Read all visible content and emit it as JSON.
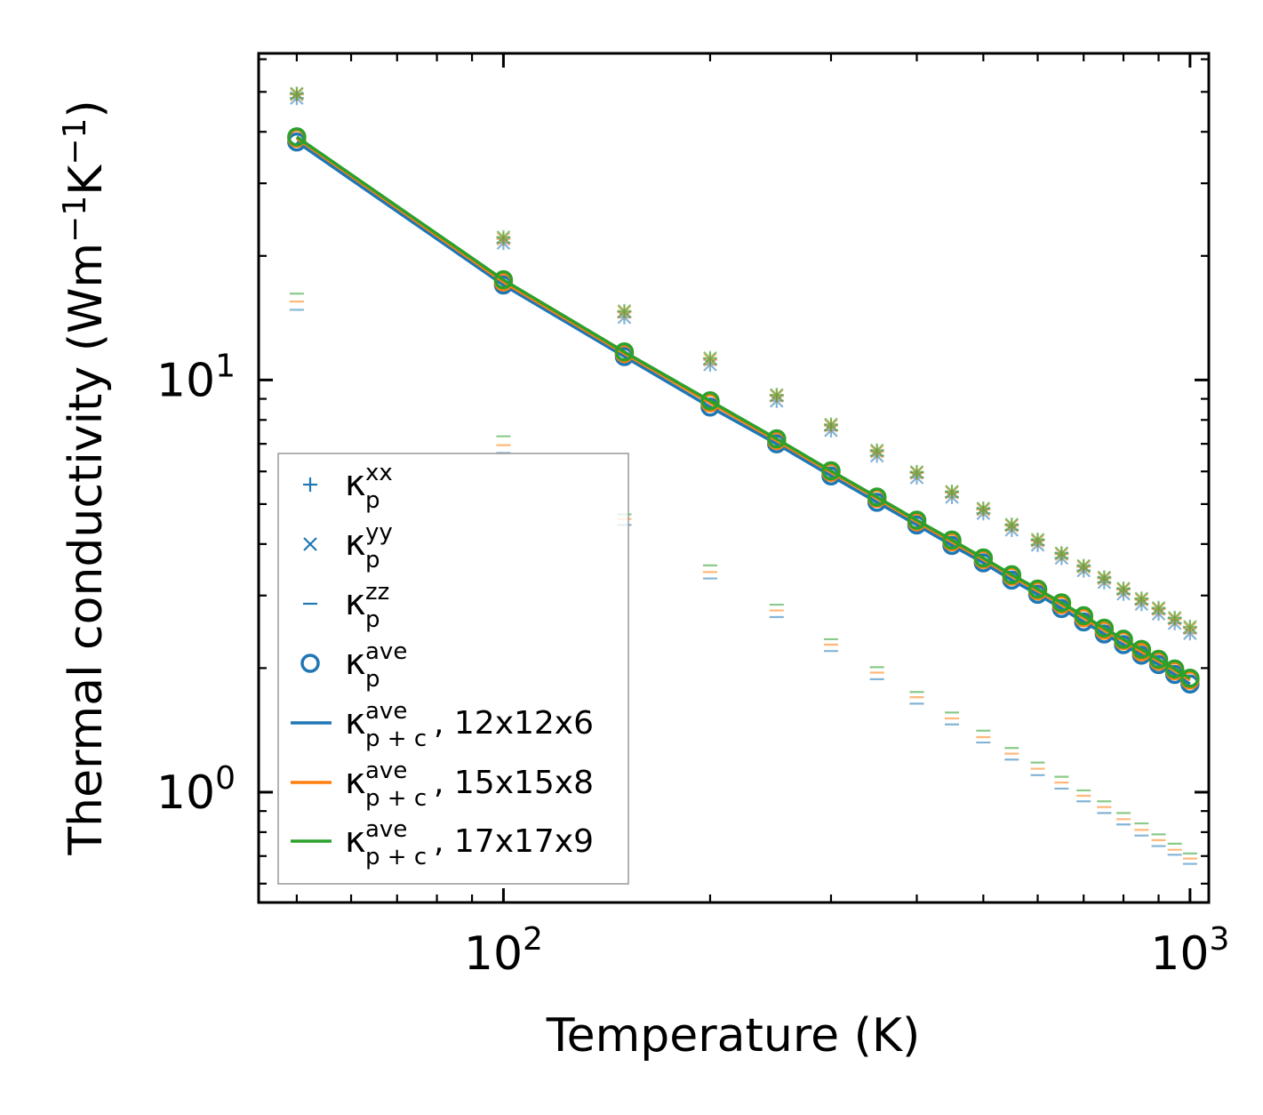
{
  "chart_data": {
    "type": "scatter",
    "title": "",
    "xlabel": "Temperature (K)",
    "ylabel": "Thermal conductivity (Wm",
    "ylabel_sup1": "−1",
    "ylabel_mid": "K",
    "ylabel_sup2": "−1",
    "ylabel_end": ")",
    "xscale": "log",
    "yscale": "log",
    "xlim": [
      44,
      1065
    ],
    "ylim": [
      0.54,
      62
    ],
    "x_major_ticks": [
      {
        "value": 100,
        "base": "10",
        "exp": "2"
      },
      {
        "value": 1000,
        "base": "10",
        "exp": "3"
      }
    ],
    "y_major_ticks": [
      {
        "value": 1,
        "base": "10",
        "exp": "0"
      },
      {
        "value": 10,
        "base": "10",
        "exp": "1"
      }
    ],
    "x": [
      50,
      100,
      150,
      200,
      250,
      300,
      350,
      400,
      450,
      500,
      550,
      600,
      650,
      700,
      750,
      800,
      850,
      900,
      950,
      1000
    ],
    "series": [
      {
        "name": "12x12x6",
        "color": "#1f77b4",
        "kxx": [
          48.3,
          21.5,
          14.2,
          10.9,
          8.9,
          7.55,
          6.55,
          5.8,
          5.2,
          4.75,
          4.33,
          3.98,
          3.7,
          3.45,
          3.23,
          3.03,
          2.86,
          2.71,
          2.57,
          2.43
        ],
        "kyy": [
          48.3,
          21.5,
          14.2,
          10.9,
          8.9,
          7.55,
          6.55,
          5.8,
          5.2,
          4.75,
          4.33,
          3.98,
          3.7,
          3.45,
          3.23,
          3.03,
          2.86,
          2.71,
          2.57,
          2.43
        ],
        "kzz": [
          14.8,
          6.65,
          4.45,
          3.3,
          2.66,
          2.2,
          1.88,
          1.64,
          1.46,
          1.32,
          1.2,
          1.1,
          1.02,
          0.95,
          0.89,
          0.835,
          0.785,
          0.74,
          0.705,
          0.67
        ],
        "kave_p": [
          37.8,
          17.0,
          11.4,
          8.6,
          7.0,
          5.85,
          5.05,
          4.45,
          3.97,
          3.6,
          3.27,
          3.02,
          2.79,
          2.59,
          2.42,
          2.28,
          2.15,
          2.04,
          1.93,
          1.83
        ],
        "kave_pc": [
          37.8,
          17.0,
          11.4,
          8.6,
          7.0,
          5.85,
          5.05,
          4.45,
          3.97,
          3.6,
          3.27,
          3.02,
          2.79,
          2.59,
          2.42,
          2.28,
          2.15,
          2.04,
          1.93,
          1.83
        ]
      },
      {
        "name": "15x15x8",
        "color": "#ff7f0e",
        "kxx": [
          49.3,
          22.0,
          14.6,
          11.2,
          9.15,
          7.75,
          6.7,
          5.95,
          5.33,
          4.85,
          4.43,
          4.07,
          3.78,
          3.52,
          3.3,
          3.1,
          2.93,
          2.78,
          2.63,
          2.5
        ],
        "kyy": [
          49.3,
          22.0,
          14.6,
          11.2,
          9.15,
          7.75,
          6.7,
          5.95,
          5.33,
          4.85,
          4.43,
          4.07,
          3.78,
          3.52,
          3.3,
          3.1,
          2.93,
          2.78,
          2.63,
          2.5
        ],
        "kzz": [
          15.5,
          6.95,
          4.6,
          3.42,
          2.76,
          2.28,
          1.95,
          1.7,
          1.51,
          1.36,
          1.24,
          1.14,
          1.055,
          0.98,
          0.92,
          0.86,
          0.81,
          0.765,
          0.725,
          0.69
        ],
        "kave_p": [
          38.6,
          17.3,
          11.6,
          8.8,
          7.13,
          5.97,
          5.16,
          4.53,
          4.05,
          3.67,
          3.34,
          3.08,
          2.85,
          2.65,
          2.47,
          2.33,
          2.19,
          2.08,
          1.97,
          1.87
        ],
        "kave_pc": [
          38.6,
          17.3,
          11.6,
          8.8,
          7.13,
          5.97,
          5.16,
          4.53,
          4.05,
          3.67,
          3.34,
          3.08,
          2.85,
          2.65,
          2.47,
          2.33,
          2.19,
          2.08,
          1.97,
          1.87
        ]
      },
      {
        "name": "17x17x9",
        "color": "#2ca02c",
        "kxx": [
          49.5,
          22.2,
          14.7,
          11.3,
          9.2,
          7.8,
          6.75,
          5.98,
          5.36,
          4.88,
          4.46,
          4.1,
          3.8,
          3.54,
          3.32,
          3.12,
          2.95,
          2.8,
          2.65,
          2.52
        ],
        "kyy": [
          49.5,
          22.2,
          14.7,
          11.3,
          9.2,
          7.8,
          6.75,
          5.98,
          5.36,
          4.88,
          4.46,
          4.1,
          3.8,
          3.54,
          3.32,
          3.12,
          2.95,
          2.8,
          2.65,
          2.52
        ],
        "kzz": [
          16.2,
          7.3,
          4.72,
          3.55,
          2.85,
          2.35,
          2.01,
          1.75,
          1.56,
          1.41,
          1.28,
          1.18,
          1.09,
          1.01,
          0.95,
          0.89,
          0.84,
          0.79,
          0.75,
          0.71
        ],
        "kave_p": [
          38.9,
          17.5,
          11.7,
          8.9,
          7.2,
          6.02,
          5.2,
          4.57,
          4.09,
          3.7,
          3.37,
          3.11,
          2.88,
          2.68,
          2.5,
          2.35,
          2.22,
          2.1,
          1.99,
          1.89
        ],
        "kave_pc": [
          38.9,
          17.5,
          11.7,
          8.9,
          7.2,
          6.02,
          5.2,
          4.57,
          4.09,
          3.7,
          3.37,
          3.11,
          2.88,
          2.68,
          2.5,
          2.35,
          2.22,
          2.1,
          1.99,
          1.89
        ]
      }
    ],
    "legend": {
      "location": "lower-left",
      "entries": [
        {
          "marker": "plus",
          "color": "#1f77b4",
          "sym": "κ",
          "sub": "p",
          "sup": "xx",
          "suffix": ""
        },
        {
          "marker": "cross",
          "color": "#1f77b4",
          "sym": "κ",
          "sub": "p",
          "sup": "yy",
          "suffix": ""
        },
        {
          "marker": "dash",
          "color": "#1f77b4",
          "sym": "κ",
          "sub": "p",
          "sup": "zz",
          "suffix": ""
        },
        {
          "marker": "circle",
          "color": "#1f77b4",
          "sym": "κ",
          "sub": "p",
          "sup": "ave",
          "suffix": ""
        },
        {
          "marker": "line",
          "color": "#1f77b4",
          "sym": "κ",
          "sub": "p + c",
          "sup": "ave",
          "suffix": ", 12x12x6"
        },
        {
          "marker": "line",
          "color": "#ff7f0e",
          "sym": "κ",
          "sub": "p + c",
          "sup": "ave",
          "suffix": ", 15x15x8"
        },
        {
          "marker": "line",
          "color": "#2ca02c",
          "sym": "κ",
          "sub": "p + c",
          "sup": "ave",
          "suffix": ", 17x17x9"
        }
      ]
    },
    "grid": false
  }
}
